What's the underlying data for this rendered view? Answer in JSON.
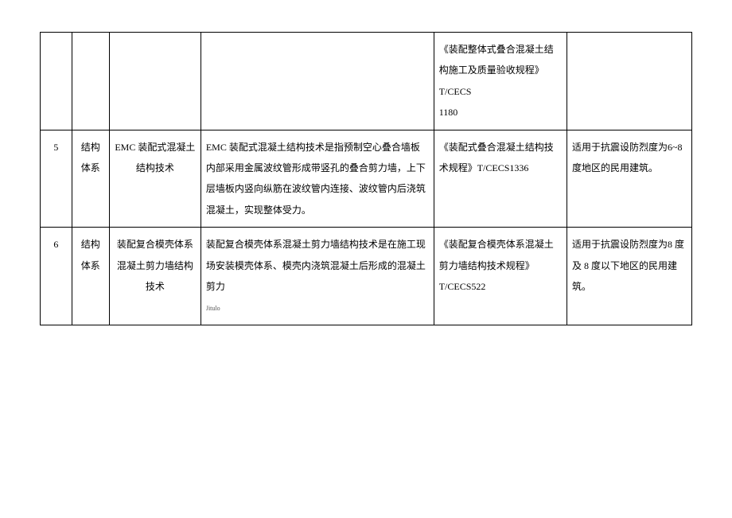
{
  "table": {
    "rows": [
      {
        "num": "",
        "cat": "",
        "name": "",
        "desc": "",
        "std": "《装配整体式叠合混凝土结构施工及质量验收规程》T/CECS\n1180",
        "app": ""
      },
      {
        "num": "5",
        "cat": "结构体系",
        "name": "EMC 装配式混凝土结构技术",
        "desc": "EMC 装配式混凝土结构技术是指预制空心叠合墙板内部采用金属波纹管形成带竖孔的叠合剪力墙，上下层墙板内竖向纵筋在波纹管内连接、波纹管内后浇筑混凝土，实现整体受力。",
        "std": "《装配式叠合混凝土结构技术规程》T/CECS1336",
        "app": "适用于抗震设防烈度为6~8 度地区的民用建筑。"
      },
      {
        "num": "6",
        "cat": "结构体系",
        "name": "装配复合模壳体系混凝土剪力墙结构技术",
        "desc": "装配复合模壳体系混凝土剪力墙结构技术是在施工现场安装模壳体系、模壳内浇筑混凝土后形成的混凝土剪力",
        "desc_label": "Jitulo",
        "std": "《装配复合模壳体系混凝土剪力墙结构技术规程》T/CECS522",
        "app": "适用于抗震设防烈度为8 度及 8 度以下地区的民用建筑。"
      }
    ]
  }
}
